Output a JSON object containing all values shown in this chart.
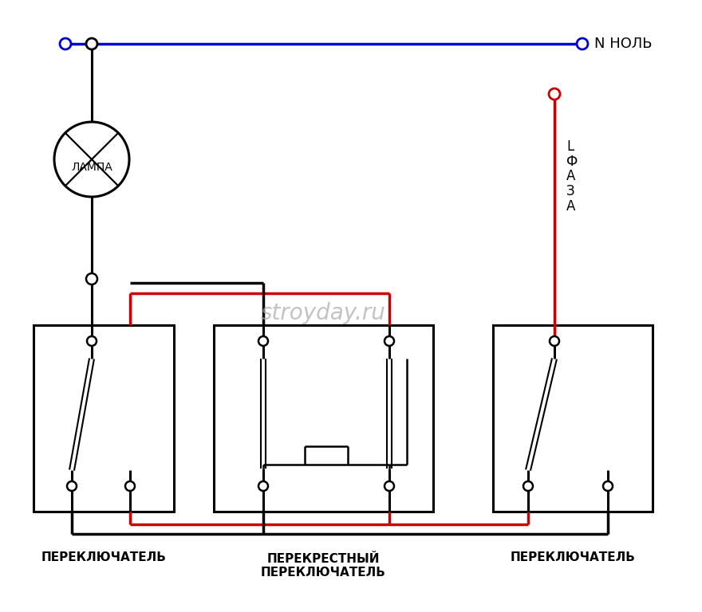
{
  "bg_color": "#ffffff",
  "BK": "#000000",
  "RD": "#cc0000",
  "BL": "#0000cc",
  "neutral_label": "N НОЛЬ",
  "phase_label": "L\nФ\nА\nЗ\nА",
  "lamp_label": "ЛАМПА",
  "sw1_label": "ПЕРЕКЛЮЧАТЕЛЬ",
  "sw2_label": "ПЕРЕКРЕСТНЫЙ\nПЕРЕКЛЮЧАТЕЛЬ",
  "sw3_label": "ПЕРЕКЛЮЧАТЕЛЬ",
  "watermark": "stroyday.ru"
}
